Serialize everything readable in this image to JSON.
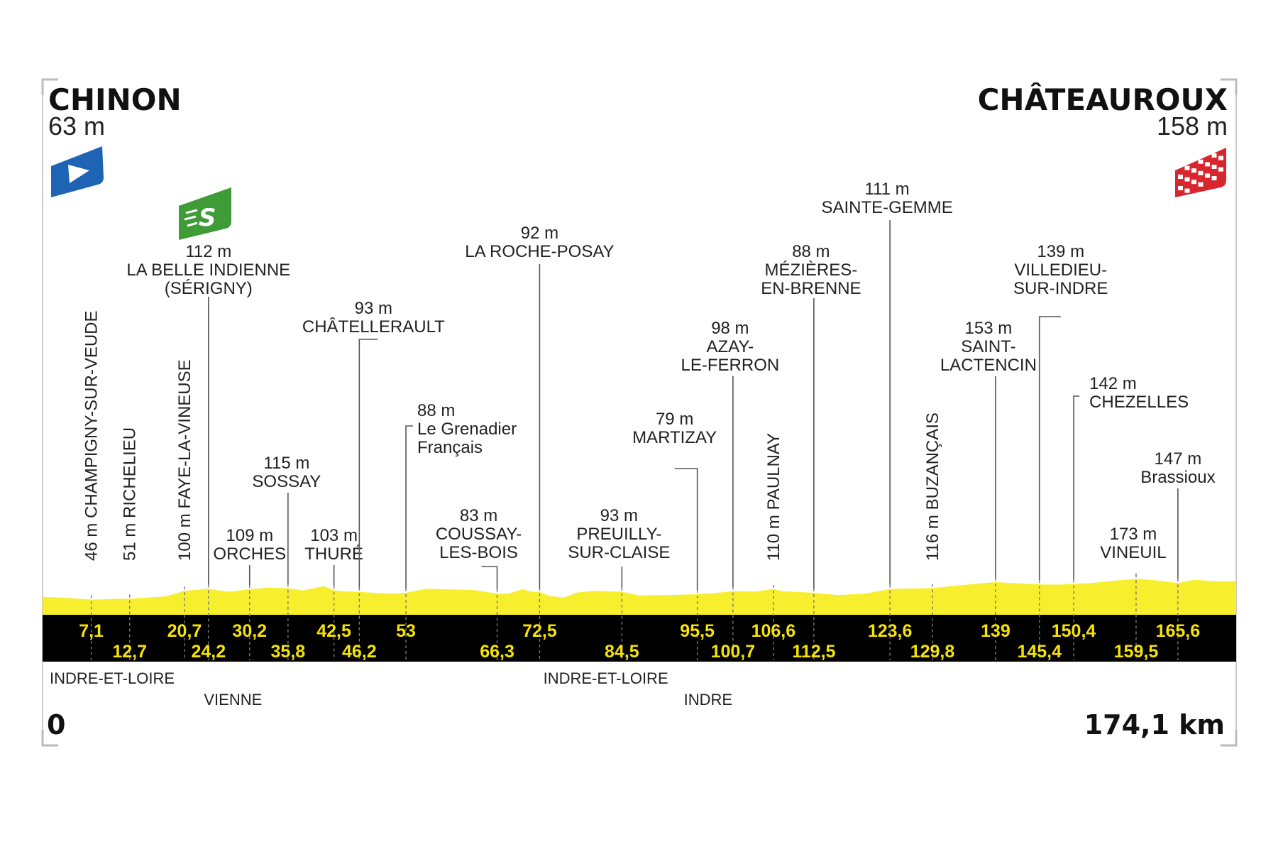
{
  "colors": {
    "profile": "#f7ef2e",
    "band": "#000000",
    "km_text": "#f5e400",
    "start_flag": "#1f63b5",
    "sprint_badge": "#3e9b35",
    "finish_flag": "#d8262e"
  },
  "icons": {
    "start": "start-flag-icon",
    "sprint": "intermediate-sprint-icon",
    "finish": "finish-checkered-flag-icon"
  },
  "chart_data": {
    "type": "area",
    "start": {
      "name": "CHINON",
      "altitude": "63 m"
    },
    "finish": {
      "name": "CHÂTEAUROUX",
      "altitude": "158 m"
    },
    "distance_start": "0",
    "distance_total": "174,1 km",
    "x_range_km": [
      0,
      174.1
    ],
    "sprint_km": 24.2,
    "waypoints": [
      {
        "km": 7.1,
        "km_label": "7,1",
        "lines": [
          "46 m CHAMPIGNY-SUR-VEUDE"
        ],
        "vertical": true
      },
      {
        "km": 12.7,
        "km_label": "12,7",
        "lines": [
          "51 m RICHELIEU"
        ],
        "vertical": true
      },
      {
        "km": 20.7,
        "km_label": "20,7",
        "lines": [
          "100 m FAYE-LA-VINEUSE"
        ],
        "vertical": true
      },
      {
        "km": 24.2,
        "km_label": "24,2",
        "lines": [
          "112 m",
          "LA BELLE INDIENNE",
          "(SÉRIGNY)"
        ]
      },
      {
        "km": 30.2,
        "km_label": "30,2",
        "lines": [
          "109 m",
          "ORCHES"
        ]
      },
      {
        "km": 35.8,
        "km_label": "35,8",
        "lines": [
          "115 m",
          "SOSSAY"
        ]
      },
      {
        "km": 42.5,
        "km_label": "42,5",
        "lines": [
          "103 m",
          "THURÉ"
        ]
      },
      {
        "km": 46.2,
        "km_label": "46,2",
        "lines": [
          "93 m",
          "CHÂTELLERAULT"
        ]
      },
      {
        "km": 53,
        "km_label": "53",
        "lines": [
          "88 m",
          "Le Grenadier",
          "Français"
        ]
      },
      {
        "km": 66.3,
        "km_label": "66,3",
        "lines": [
          "83 m",
          "COUSSAY-",
          "LES-BOIS"
        ]
      },
      {
        "km": 72.5,
        "km_label": "72,5",
        "lines": [
          "92 m",
          "LA ROCHE-POSAY"
        ]
      },
      {
        "km": 84.5,
        "km_label": "84,5",
        "lines": [
          "93 m",
          "PREUILLY-",
          "SUR-CLAISE"
        ]
      },
      {
        "km": 95.5,
        "km_label": "95,5",
        "lines": [
          "79 m",
          "MARTIZAY"
        ]
      },
      {
        "km": 100.7,
        "km_label": "100,7",
        "lines": [
          "98 m",
          "AZAY-",
          "LE-FERRON"
        ]
      },
      {
        "km": 106.6,
        "km_label": "106,6",
        "lines": [
          "110 m PAULNAY"
        ],
        "vertical": true
      },
      {
        "km": 112.5,
        "km_label": "112,5",
        "lines": [
          "88 m",
          "MÉZIÈRES-",
          "EN-BRENNE"
        ]
      },
      {
        "km": 123.6,
        "km_label": "123,6",
        "lines": [
          "111 m",
          "SAINTE-GEMME"
        ]
      },
      {
        "km": 129.8,
        "km_label": "129,8",
        "lines": [
          "116 m BUZANÇAIS"
        ],
        "vertical": true
      },
      {
        "km": 139,
        "km_label": "139",
        "lines": [
          "153 m",
          "SAINT-",
          "LACTENCIN"
        ]
      },
      {
        "km": 145.4,
        "km_label": "145,4",
        "lines": [
          "139 m",
          "VILLEDIEU-",
          "SUR-INDRE"
        ]
      },
      {
        "km": 150.4,
        "km_label": "150,4",
        "lines": [
          "142 m",
          "CHEZELLES"
        ]
      },
      {
        "km": 159.5,
        "km_label": "159,5",
        "lines": [
          "173 m",
          "VINEUIL"
        ]
      },
      {
        "km": 165.6,
        "km_label": "165,6",
        "lines": [
          "147 m",
          "Brassioux"
        ]
      }
    ],
    "regions": [
      {
        "name": "INDRE-ET-LOIRE",
        "km": 0
      },
      {
        "name": "VIENNE",
        "km": 22.5
      },
      {
        "name": "INDRE-ET-LOIRE",
        "km": 72
      },
      {
        "name": "INDRE",
        "km": 92.5
      }
    ],
    "profile": [
      [
        0,
        63
      ],
      [
        3,
        58
      ],
      [
        7.1,
        46
      ],
      [
        10,
        50
      ],
      [
        12.7,
        51
      ],
      [
        16,
        60
      ],
      [
        18,
        66
      ],
      [
        20.7,
        100
      ],
      [
        23,
        108
      ],
      [
        24.2,
        112
      ],
      [
        27,
        94
      ],
      [
        30.2,
        109
      ],
      [
        33,
        120
      ],
      [
        35.8,
        115
      ],
      [
        38,
        102
      ],
      [
        41,
        128
      ],
      [
        42.5,
        103
      ],
      [
        44,
        96
      ],
      [
        46.2,
        93
      ],
      [
        49,
        86
      ],
      [
        51,
        82
      ],
      [
        53,
        88
      ],
      [
        56,
        112
      ],
      [
        60,
        108
      ],
      [
        63,
        104
      ],
      [
        66.3,
        83
      ],
      [
        68,
        82
      ],
      [
        70,
        110
      ],
      [
        71.5,
        94
      ],
      [
        72.5,
        92
      ],
      [
        74,
        68
      ],
      [
        76,
        58
      ],
      [
        78,
        90
      ],
      [
        81,
        100
      ],
      [
        84.5,
        93
      ],
      [
        87,
        72
      ],
      [
        91,
        74
      ],
      [
        95.5,
        79
      ],
      [
        98,
        86
      ],
      [
        100.7,
        98
      ],
      [
        104,
        96
      ],
      [
        106.6,
        110
      ],
      [
        108,
        98
      ],
      [
        112.5,
        88
      ],
      [
        116,
        74
      ],
      [
        120,
        82
      ],
      [
        123.6,
        111
      ],
      [
        127,
        114
      ],
      [
        129.8,
        116
      ],
      [
        133,
        130
      ],
      [
        136,
        142
      ],
      [
        139,
        153
      ],
      [
        142,
        146
      ],
      [
        145.4,
        139
      ],
      [
        148,
        138
      ],
      [
        150.4,
        142
      ],
      [
        153,
        148
      ],
      [
        156,
        160
      ],
      [
        159.5,
        173
      ],
      [
        162,
        166
      ],
      [
        165.6,
        147
      ],
      [
        168,
        168
      ],
      [
        171,
        158
      ],
      [
        174.1,
        158
      ]
    ]
  }
}
